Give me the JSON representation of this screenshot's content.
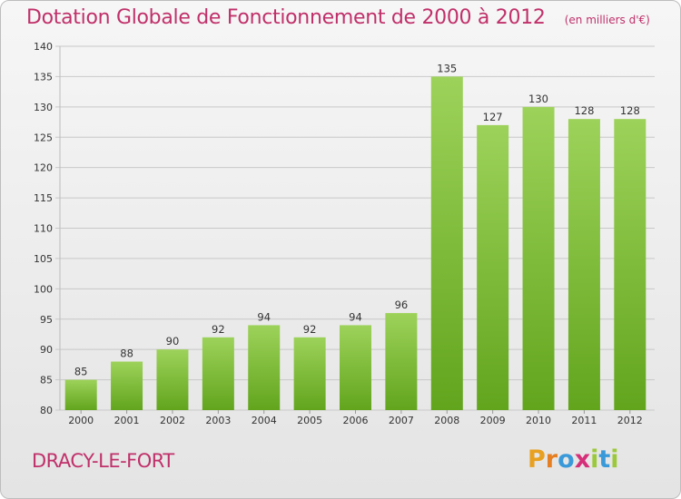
{
  "title": "Dotation Globale de Fonctionnement de 2000 à 2012",
  "unit": "(en milliers d'€)",
  "commune": "DRACY-LE-FORT",
  "logo": {
    "letters": [
      "P",
      "r",
      "o",
      "x",
      "i",
      "t",
      "i"
    ],
    "colors": [
      "#e8a020",
      "#e67e22",
      "#3a9ad9",
      "#d62f7a",
      "#9cc93c",
      "#3a9ad9",
      "#9cc93c"
    ]
  },
  "colors": {
    "bar_light": "#9dd25a",
    "bar_dark": "#62a51d",
    "grid": "#c8c8c8",
    "title": "#c0306a"
  },
  "chart_data": {
    "type": "bar",
    "title": "Dotation Globale de Fonctionnement de 2000 à 2012",
    "categories": [
      "2000",
      "2001",
      "2002",
      "2003",
      "2004",
      "2005",
      "2006",
      "2007",
      "2008",
      "2009",
      "2010",
      "2011",
      "2012"
    ],
    "values": [
      85,
      88,
      90,
      92,
      94,
      92,
      94,
      96,
      135,
      127,
      130,
      128,
      128
    ],
    "ylim": [
      80,
      140
    ],
    "yticks": [
      80,
      85,
      90,
      95,
      100,
      105,
      110,
      115,
      120,
      125,
      130,
      135,
      140
    ],
    "grid": true
  }
}
